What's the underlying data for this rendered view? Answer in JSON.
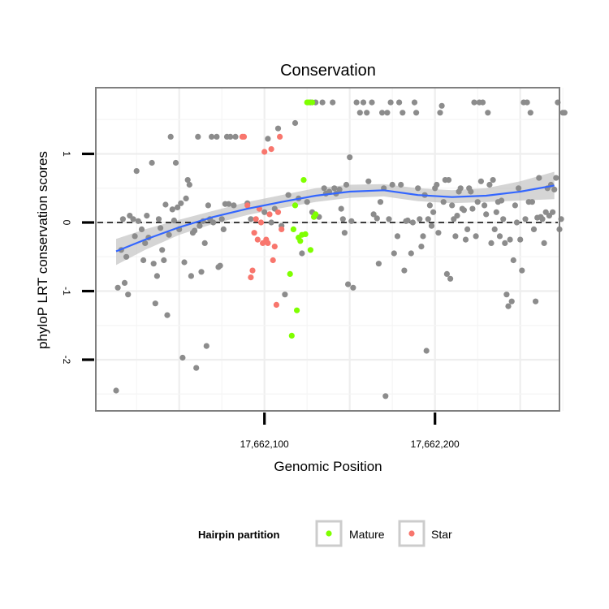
{
  "chart_data": {
    "type": "scatter",
    "title": "Conservation",
    "xlabel": "Genomic Position",
    "ylabel": "phyloP LRT conservation scores",
    "xlim": [
      17662001,
      17662276
    ],
    "ylim": [
      -2.6,
      1.95
    ],
    "x_ticks": [
      17662100,
      17662200
    ],
    "x_tick_labels": [
      "17,662,100",
      "17,662,200"
    ],
    "y_ticks": [
      -2,
      -1,
      0,
      1
    ],
    "y_tick_labels": [
      "-2",
      "-1",
      "0",
      "1"
    ],
    "reference_line": {
      "y": 0,
      "style": "dashed"
    },
    "legend": {
      "title": "Hairpin partition",
      "position": "bottom",
      "entries": [
        {
          "label": "Mature",
          "color": "#7fff00"
        },
        {
          "label": "Star",
          "color": "#f8766d"
        }
      ]
    },
    "colors": {
      "other": "#8c8c8c",
      "Mature": "#7fff00",
      "Star": "#f8766d",
      "smooth": "#3366ff",
      "band": "#bfbfbf",
      "panel_border": "#7f7f7f"
    },
    "smooth": {
      "x": [
        17662013,
        17662030,
        17662050,
        17662070,
        17662090,
        17662110,
        17662130,
        17662150,
        17662170,
        17662190,
        17662210,
        17662230,
        17662250,
        17662270
      ],
      "y": [
        -0.42,
        -0.25,
        -0.07,
        0.08,
        0.2,
        0.3,
        0.39,
        0.45,
        0.47,
        0.4,
        0.37,
        0.39,
        0.45,
        0.54
      ],
      "lower": [
        -0.62,
        -0.4,
        -0.18,
        -0.02,
        0.11,
        0.21,
        0.3,
        0.36,
        0.38,
        0.31,
        0.28,
        0.3,
        0.32,
        0.34
      ],
      "upper": [
        -0.24,
        -0.1,
        0.04,
        0.17,
        0.3,
        0.4,
        0.5,
        0.55,
        0.56,
        0.5,
        0.47,
        0.5,
        0.6,
        0.74
      ]
    },
    "series": [
      {
        "name": "Other",
        "points": [
          [
            17662013,
            -2.45
          ],
          [
            17662014,
            -0.95
          ],
          [
            17662016,
            -0.4
          ],
          [
            17662017,
            0.05
          ],
          [
            17662018,
            -0.88
          ],
          [
            17662019,
            -0.5
          ],
          [
            17662020,
            -1.05
          ],
          [
            17662021,
            0.1
          ],
          [
            17662023,
            0.05
          ],
          [
            17662024,
            -0.2
          ],
          [
            17662025,
            0.75
          ],
          [
            17662026,
            0.02
          ],
          [
            17662028,
            -0.1
          ],
          [
            17662029,
            -0.55
          ],
          [
            17662030,
            -0.3
          ],
          [
            17662031,
            0.1
          ],
          [
            17662032,
            -0.22
          ],
          [
            17662034,
            0.87
          ],
          [
            17662035,
            -0.6
          ],
          [
            17662036,
            -1.18
          ],
          [
            17662037,
            -0.78
          ],
          [
            17662038,
            0.05
          ],
          [
            17662039,
            -0.08
          ],
          [
            17662040,
            -0.4
          ],
          [
            17662041,
            -0.55
          ],
          [
            17662042,
            0.26
          ],
          [
            17662043,
            -1.35
          ],
          [
            17662044,
            -0.18
          ],
          [
            17662045,
            1.25
          ],
          [
            17662046,
            0.19
          ],
          [
            17662047,
            0.03
          ],
          [
            17662048,
            0.87
          ],
          [
            17662049,
            0.22
          ],
          [
            17662050,
            -0.1
          ],
          [
            17662051,
            0.28
          ],
          [
            17662052,
            -1.97
          ],
          [
            17662053,
            -0.58
          ],
          [
            17662054,
            0.35
          ],
          [
            17662055,
            0.62
          ],
          [
            17662056,
            0.55
          ],
          [
            17662057,
            -0.78
          ],
          [
            17662058,
            -0.15
          ],
          [
            17662059,
            -0.12
          ],
          [
            17662060,
            -2.12
          ],
          [
            17662061,
            1.25
          ],
          [
            17662062,
            -0.05
          ],
          [
            17662063,
            -0.72
          ],
          [
            17662064,
            0.02
          ],
          [
            17662065,
            -0.3
          ],
          [
            17662066,
            -1.8
          ],
          [
            17662067,
            0.25
          ],
          [
            17662068,
            0.05
          ],
          [
            17662069,
            1.25
          ],
          [
            17662070,
            0.0
          ],
          [
            17662072,
            1.25
          ],
          [
            17662073,
            -0.65
          ],
          [
            17662074,
            -0.63
          ],
          [
            17662075,
            0.05
          ],
          [
            17662076,
            -0.1
          ],
          [
            17662077,
            0.27
          ],
          [
            17662078,
            1.25
          ],
          [
            17662079,
            0.27
          ],
          [
            17662080,
            1.25
          ],
          [
            17662082,
            0.25
          ],
          [
            17662083,
            1.25
          ],
          [
            17662090,
            0.28
          ],
          [
            17662092,
            0.05
          ],
          [
            17662100,
            0.15
          ],
          [
            17662102,
            1.22
          ],
          [
            17662104,
            0.0
          ],
          [
            17662106,
            0.2
          ],
          [
            17662108,
            1.37
          ],
          [
            17662110,
            -0.05
          ],
          [
            17662112,
            -1.05
          ],
          [
            17662114,
            0.4
          ],
          [
            17662118,
            1.45
          ],
          [
            17662120,
            0.35
          ],
          [
            17662122,
            -0.45
          ],
          [
            17662125,
            0.3
          ],
          [
            17662127,
            1.75
          ],
          [
            17662128,
            0.15
          ],
          [
            17662130,
            1.75
          ],
          [
            17662132,
            0.08
          ],
          [
            17662134,
            1.75
          ],
          [
            17662135,
            0.5
          ],
          [
            17662136,
            0.42
          ],
          [
            17662138,
            0.45
          ],
          [
            17662140,
            1.75
          ],
          [
            17662141,
            0.5
          ],
          [
            17662142,
            0.42
          ],
          [
            17662144,
            0.48
          ],
          [
            17662145,
            0.2
          ],
          [
            17662146,
            0.05
          ],
          [
            17662147,
            -0.15
          ],
          [
            17662148,
            0.55
          ],
          [
            17662149,
            -0.9
          ],
          [
            17662150,
            0.95
          ],
          [
            17662151,
            0.02
          ],
          [
            17662152,
            -0.95
          ],
          [
            17662154,
            1.75
          ],
          [
            17662156,
            1.6
          ],
          [
            17662158,
            1.75
          ],
          [
            17662160,
            1.6
          ],
          [
            17662161,
            0.6
          ],
          [
            17662163,
            1.75
          ],
          [
            17662164,
            0.12
          ],
          [
            17662166,
            0.06
          ],
          [
            17662167,
            -0.6
          ],
          [
            17662168,
            0.3
          ],
          [
            17662169,
            1.6
          ],
          [
            17662170,
            0.5
          ],
          [
            17662171,
            -2.53
          ],
          [
            17662172,
            1.6
          ],
          [
            17662173,
            0.05
          ],
          [
            17662174,
            1.75
          ],
          [
            17662175,
            0.55
          ],
          [
            17662176,
            -0.45
          ],
          [
            17662178,
            -0.2
          ],
          [
            17662179,
            1.75
          ],
          [
            17662180,
            0.55
          ],
          [
            17662181,
            1.6
          ],
          [
            17662182,
            -0.7
          ],
          [
            17662183,
            0.02
          ],
          [
            17662184,
            0.03
          ],
          [
            17662186,
            -0.45
          ],
          [
            17662187,
            0.0
          ],
          [
            17662188,
            1.75
          ],
          [
            17662189,
            1.6
          ],
          [
            17662190,
            0.5
          ],
          [
            17662191,
            0.05
          ],
          [
            17662192,
            -0.35
          ],
          [
            17662193,
            -0.2
          ],
          [
            17662194,
            0.4
          ],
          [
            17662195,
            -1.87
          ],
          [
            17662196,
            0.05
          ],
          [
            17662197,
            0.25
          ],
          [
            17662198,
            -0.05
          ],
          [
            17662199,
            0.15
          ],
          [
            17662200,
            0.5
          ],
          [
            17662201,
            0.55
          ],
          [
            17662202,
            -0.15
          ],
          [
            17662203,
            1.6
          ],
          [
            17662204,
            1.7
          ],
          [
            17662205,
            0.3
          ],
          [
            17662206,
            0.62
          ],
          [
            17662207,
            -0.75
          ],
          [
            17662208,
            0.62
          ],
          [
            17662209,
            -0.82
          ],
          [
            17662210,
            0.25
          ],
          [
            17662211,
            0.05
          ],
          [
            17662212,
            -0.2
          ],
          [
            17662213,
            0.1
          ],
          [
            17662214,
            0.45
          ],
          [
            17662215,
            0.5
          ],
          [
            17662216,
            0.2
          ],
          [
            17662217,
            0.18
          ],
          [
            17662218,
            -0.25
          ],
          [
            17662219,
            -0.1
          ],
          [
            17662220,
            0.5
          ],
          [
            17662221,
            0.45
          ],
          [
            17662222,
            0.2
          ],
          [
            17662223,
            1.75
          ],
          [
            17662224,
            -0.2
          ],
          [
            17662225,
            0.3
          ],
          [
            17662226,
            1.75
          ],
          [
            17662227,
            0.6
          ],
          [
            17662228,
            1.75
          ],
          [
            17662229,
            0.25
          ],
          [
            17662230,
            0.12
          ],
          [
            17662231,
            1.6
          ],
          [
            17662232,
            0.55
          ],
          [
            17662233,
            -0.3
          ],
          [
            17662234,
            0.62
          ],
          [
            17662235,
            -0.1
          ],
          [
            17662236,
            0.15
          ],
          [
            17662237,
            0.3
          ],
          [
            17662238,
            -0.2
          ],
          [
            17662239,
            0.32
          ],
          [
            17662240,
            0.05
          ],
          [
            17662241,
            -0.3
          ],
          [
            17662242,
            -1.05
          ],
          [
            17662243,
            -1.22
          ],
          [
            17662244,
            -0.25
          ],
          [
            17662245,
            -1.15
          ],
          [
            17662246,
            -0.55
          ],
          [
            17662247,
            0.25
          ],
          [
            17662248,
            0.0
          ],
          [
            17662249,
            0.5
          ],
          [
            17662250,
            -0.25
          ],
          [
            17662251,
            -0.7
          ],
          [
            17662252,
            1.75
          ],
          [
            17662253,
            0.05
          ],
          [
            17662254,
            1.75
          ],
          [
            17662255,
            0.3
          ],
          [
            17662256,
            1.6
          ],
          [
            17662257,
            0.3
          ],
          [
            17662258,
            -0.1
          ],
          [
            17662259,
            -1.15
          ],
          [
            17662260,
            0.07
          ],
          [
            17662261,
            0.65
          ],
          [
            17662262,
            0.08
          ],
          [
            17662263,
            0.05
          ],
          [
            17662264,
            -0.3
          ],
          [
            17662265,
            0.15
          ],
          [
            17662266,
            0.5
          ],
          [
            17662267,
            0.1
          ],
          [
            17662268,
            0.55
          ],
          [
            17662269,
            0.15
          ],
          [
            17662270,
            0.48
          ],
          [
            17662271,
            0.65
          ],
          [
            17662272,
            1.75
          ],
          [
            17662273,
            -0.1
          ],
          [
            17662274,
            0.05
          ],
          [
            17662275,
            1.6
          ],
          [
            17662276,
            1.6
          ]
        ]
      },
      {
        "name": "Mature",
        "points": [
          [
            17662115,
            -0.75
          ],
          [
            17662116,
            -1.65
          ],
          [
            17662117,
            -0.1
          ],
          [
            17662118,
            0.25
          ],
          [
            17662119,
            -1.28
          ],
          [
            17662120,
            -0.22
          ],
          [
            17662121,
            -0.27
          ],
          [
            17662122,
            -0.18
          ],
          [
            17662123,
            0.62
          ],
          [
            17662124,
            -0.17
          ],
          [
            17662125,
            1.75
          ],
          [
            17662126,
            1.75
          ],
          [
            17662127,
            -0.4
          ],
          [
            17662128,
            1.75
          ],
          [
            17662129,
            0.08
          ],
          [
            17662130,
            0.12
          ]
        ]
      },
      {
        "name": "Star",
        "points": [
          [
            17662087,
            1.25
          ],
          [
            17662088,
            1.25
          ],
          [
            17662090,
            0.25
          ],
          [
            17662092,
            -0.8
          ],
          [
            17662093,
            -0.7
          ],
          [
            17662094,
            -0.15
          ],
          [
            17662095,
            0.05
          ],
          [
            17662096,
            -0.25
          ],
          [
            17662097,
            0.2
          ],
          [
            17662098,
            0.0
          ],
          [
            17662099,
            -0.3
          ],
          [
            17662100,
            1.03
          ],
          [
            17662101,
            -0.25
          ],
          [
            17662102,
            -0.3
          ],
          [
            17662103,
            0.12
          ],
          [
            17662104,
            1.07
          ],
          [
            17662105,
            -0.55
          ],
          [
            17662106,
            -0.35
          ],
          [
            17662107,
            -1.2
          ],
          [
            17662108,
            0.15
          ],
          [
            17662109,
            1.25
          ],
          [
            17662110,
            -0.1
          ]
        ]
      }
    ]
  }
}
